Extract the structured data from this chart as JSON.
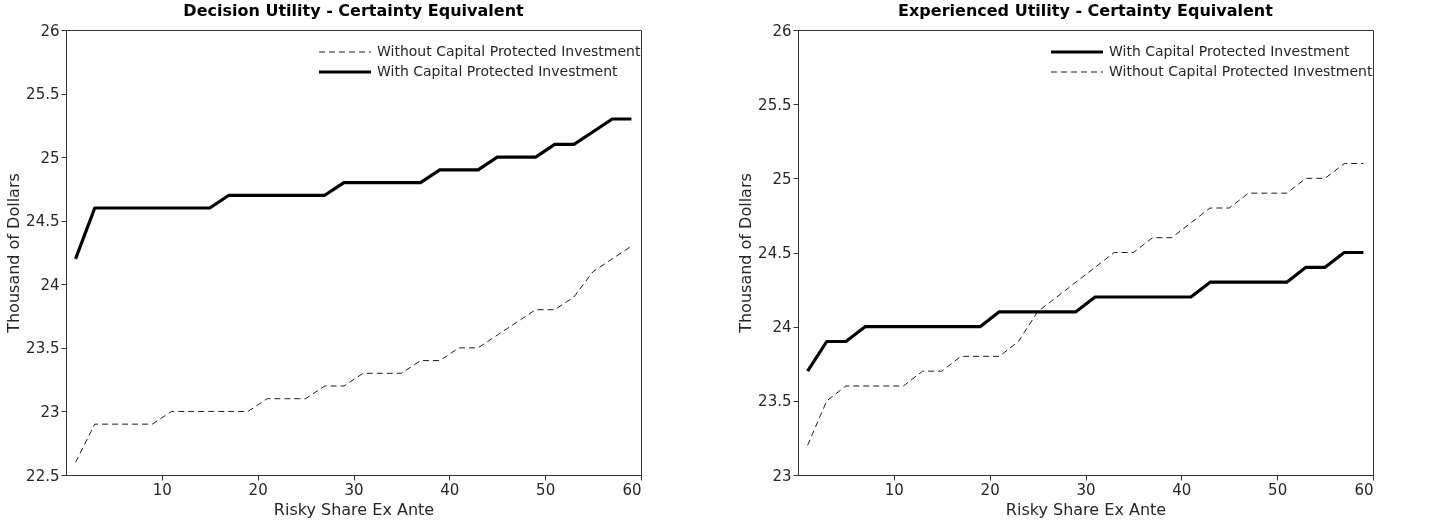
{
  "chart_data": [
    {
      "type": "line",
      "title": "Decision Utility - Certainty Equivalent",
      "xlabel": "Risky Share Ex Ante",
      "ylabel": "Thousand of Dollars",
      "x": [
        1,
        3,
        5,
        7,
        9,
        11,
        13,
        15,
        17,
        19,
        21,
        23,
        25,
        27,
        29,
        31,
        33,
        35,
        37,
        39,
        41,
        43,
        45,
        47,
        49,
        51,
        53,
        55,
        57,
        59
      ],
      "series": [
        {
          "name": "Without Capital Protected Investment",
          "color": "#000000",
          "line_style": "dashed",
          "values": [
            22.6,
            22.9,
            22.9,
            22.9,
            22.9,
            23.0,
            23.0,
            23.0,
            23.0,
            23.0,
            23.1,
            23.1,
            23.1,
            23.2,
            23.2,
            23.3,
            23.3,
            23.3,
            23.4,
            23.4,
            23.5,
            23.5,
            23.6,
            23.7,
            23.8,
            23.8,
            23.9,
            24.1,
            24.2,
            24.3
          ]
        },
        {
          "name": "With Capital Protected Investment",
          "color": "#000000",
          "line_style": "solid",
          "values": [
            24.2,
            24.6,
            24.6,
            24.6,
            24.6,
            24.6,
            24.6,
            24.6,
            24.7,
            24.7,
            24.7,
            24.7,
            24.7,
            24.7,
            24.8,
            24.8,
            24.8,
            24.8,
            24.8,
            24.9,
            24.9,
            24.9,
            25.0,
            25.0,
            25.0,
            25.1,
            25.1,
            25.2,
            25.3,
            25.3
          ]
        }
      ],
      "xlim": [
        0,
        60
      ],
      "xticks": [
        10,
        20,
        30,
        40,
        50,
        60
      ],
      "ylim": [
        22.5,
        26
      ],
      "yticks": [
        22.5,
        23,
        23.5,
        24,
        24.5,
        25,
        25.5,
        26
      ],
      "grid": false,
      "legend": "top right",
      "marker": "none"
    },
    {
      "type": "line",
      "title": "Experienced Utility - Certainty Equivalent",
      "xlabel": "Risky Share Ex Ante",
      "ylabel": "Thousand of Dollars",
      "x": [
        1,
        3,
        5,
        7,
        9,
        11,
        13,
        15,
        17,
        19,
        21,
        23,
        25,
        27,
        29,
        31,
        33,
        35,
        37,
        39,
        41,
        43,
        45,
        47,
        49,
        51,
        53,
        55,
        57,
        59
      ],
      "series": [
        {
          "name": "With Capital Protected Investment",
          "color": "#000000",
          "line_style": "solid",
          "values": [
            23.7,
            23.9,
            23.9,
            24.0,
            24.0,
            24.0,
            24.0,
            24.0,
            24.0,
            24.0,
            24.1,
            24.1,
            24.1,
            24.1,
            24.1,
            24.2,
            24.2,
            24.2,
            24.2,
            24.2,
            24.2,
            24.3,
            24.3,
            24.3,
            24.3,
            24.3,
            24.4,
            24.4,
            24.5,
            24.5
          ]
        },
        {
          "name": "Without Capital Protected Investment",
          "color": "#000000",
          "line_style": "dashed",
          "values": [
            23.2,
            23.5,
            23.6,
            23.6,
            23.6,
            23.6,
            23.7,
            23.7,
            23.8,
            23.8,
            23.8,
            23.9,
            24.1,
            24.2,
            24.3,
            24.4,
            24.5,
            24.5,
            24.6,
            24.6,
            24.7,
            24.8,
            24.8,
            24.9,
            24.9,
            24.9,
            25.0,
            25.0,
            25.1,
            25.1
          ]
        }
      ],
      "xlim": [
        0,
        60
      ],
      "xticks": [
        10,
        20,
        30,
        40,
        50,
        60
      ],
      "ylim": [
        23,
        26
      ],
      "yticks": [
        23,
        23.5,
        24,
        24.5,
        25,
        25.5,
        26
      ],
      "grid": false,
      "legend": "top right",
      "marker": "none"
    }
  ]
}
